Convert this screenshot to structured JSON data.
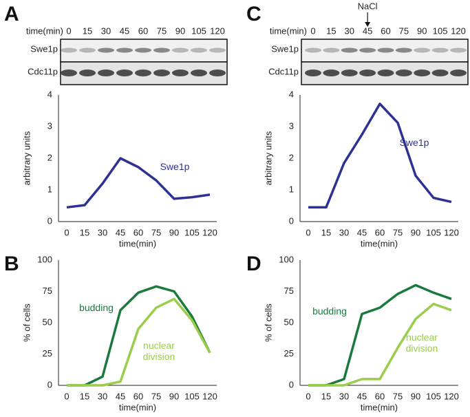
{
  "chart_data": [
    {
      "type": "line",
      "panel": "A",
      "blot": {
        "row_title": "time(min)",
        "lanes": [
          "0",
          "15",
          "30",
          "45",
          "60",
          "75",
          "90",
          "105",
          "120"
        ],
        "rows": [
          "Swe1p",
          "Cdc11p"
        ]
      },
      "x": [
        0,
        15,
        30,
        45,
        60,
        75,
        90,
        105,
        120
      ],
      "xlim": [
        0,
        120
      ],
      "xticks": [
        0,
        15,
        30,
        45,
        60,
        75,
        90,
        105,
        120
      ],
      "ylim": [
        0,
        4
      ],
      "yticks": [
        0,
        1,
        2,
        3,
        4
      ],
      "x_label": "time(min)",
      "y_label": "arbitrary units",
      "series": [
        {
          "name": "Swe1p",
          "color": "#2e3192",
          "values": [
            0.45,
            0.52,
            1.2,
            2.0,
            1.72,
            1.3,
            0.72,
            0.77,
            0.85
          ]
        }
      ]
    },
    {
      "type": "line",
      "panel": "B",
      "x": [
        0,
        15,
        30,
        45,
        60,
        75,
        90,
        105,
        120
      ],
      "xlim": [
        0,
        120
      ],
      "xticks": [
        0,
        15,
        30,
        45,
        60,
        75,
        90,
        105,
        120
      ],
      "ylim": [
        0,
        100
      ],
      "yticks": [
        0,
        25,
        50,
        75,
        100
      ],
      "x_label": "time(min)",
      "y_label": "% of cells",
      "series": [
        {
          "name": "budding",
          "color": "#1a7a3c",
          "values": [
            0,
            0,
            7,
            60,
            74,
            79,
            75,
            55,
            26
          ]
        },
        {
          "name": "nuclear division",
          "color": "#9acd4a",
          "values": [
            0,
            0,
            0,
            3,
            45,
            62,
            69,
            52,
            26
          ]
        }
      ]
    },
    {
      "type": "line",
      "panel": "C",
      "blot": {
        "row_title": "time(min)",
        "lanes": [
          "0",
          "15",
          "30",
          "45",
          "60",
          "75",
          "90",
          "105",
          "120"
        ],
        "rows": [
          "Swe1p",
          "Cdc11p"
        ],
        "annotation": "NaCl"
      },
      "x": [
        0,
        15,
        30,
        45,
        60,
        75,
        90,
        105,
        120
      ],
      "xlim": [
        0,
        120
      ],
      "xticks": [
        0,
        15,
        30,
        45,
        60,
        75,
        90,
        105,
        120
      ],
      "ylim": [
        0,
        4
      ],
      "yticks": [
        0,
        1,
        2,
        3,
        4
      ],
      "x_label": "time(min)",
      "y_label": "arbitrary units",
      "series": [
        {
          "name": "Swe1p",
          "color": "#2e3192",
          "values": [
            0.45,
            0.45,
            1.85,
            2.75,
            3.72,
            3.12,
            1.45,
            0.75,
            0.62
          ]
        }
      ]
    },
    {
      "type": "line",
      "panel": "D",
      "x": [
        0,
        15,
        30,
        45,
        60,
        75,
        90,
        105,
        120
      ],
      "xlim": [
        0,
        120
      ],
      "xticks": [
        0,
        15,
        30,
        45,
        60,
        75,
        90,
        105,
        120
      ],
      "ylim": [
        0,
        100
      ],
      "yticks": [
        0,
        25,
        50,
        75,
        100
      ],
      "x_label": "time(min)",
      "y_label": "% of cells",
      "series": [
        {
          "name": "budding",
          "color": "#1a7a3c",
          "values": [
            0,
            0,
            5,
            57,
            62,
            73,
            80,
            74,
            69
          ]
        },
        {
          "name": "nuclear division",
          "color": "#9acd4a",
          "values": [
            0,
            0,
            0,
            5,
            5,
            30,
            53,
            65,
            60
          ]
        }
      ]
    }
  ]
}
